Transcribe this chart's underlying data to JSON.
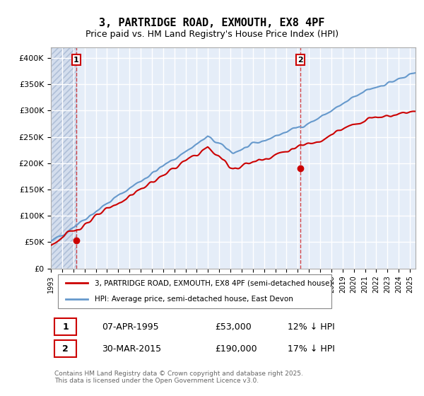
{
  "title": "3, PARTRIDGE ROAD, EXMOUTH, EX8 4PF",
  "subtitle": "Price paid vs. HM Land Registry's House Price Index (HPI)",
  "ylim": [
    0,
    420000
  ],
  "yticks": [
    0,
    50000,
    100000,
    150000,
    200000,
    250000,
    300000,
    350000,
    400000
  ],
  "xlim_start": 1993.0,
  "xlim_end": 2025.5,
  "sale1_date": 1995.27,
  "sale1_price": 53000,
  "sale1_label": "1",
  "sale2_date": 2015.25,
  "sale2_price": 190000,
  "sale2_label": "2",
  "hpi_label": "HPI: Average price, semi-detached house, East Devon",
  "price_label": "3, PARTRIDGE ROAD, EXMOUTH, EX8 4PF (semi-detached house)",
  "legend_entries": [
    "3, PARTRIDGE ROAD, EXMOUTH, EX8 4PF (semi-detached house)",
    "HPI: Average price, semi-detached house, East Devon"
  ],
  "annotation1": "07-APR-1995",
  "annotation1_price": "£53,000",
  "annotation1_hpi": "12% ↓ HPI",
  "annotation2": "30-MAR-2015",
  "annotation2_price": "£190,000",
  "annotation2_hpi": "17% ↓ HPI",
  "footer": "Contains HM Land Registry data © Crown copyright and database right 2025.\nThis data is licensed under the Open Government Licence v3.0.",
  "bg_color": "#e8eef8",
  "plot_bg_color": "#f0f4fc",
  "grid_color": "#ffffff",
  "hatch_color": "#c8d4e8",
  "price_line_color": "#cc0000",
  "hpi_line_color": "#6699cc"
}
